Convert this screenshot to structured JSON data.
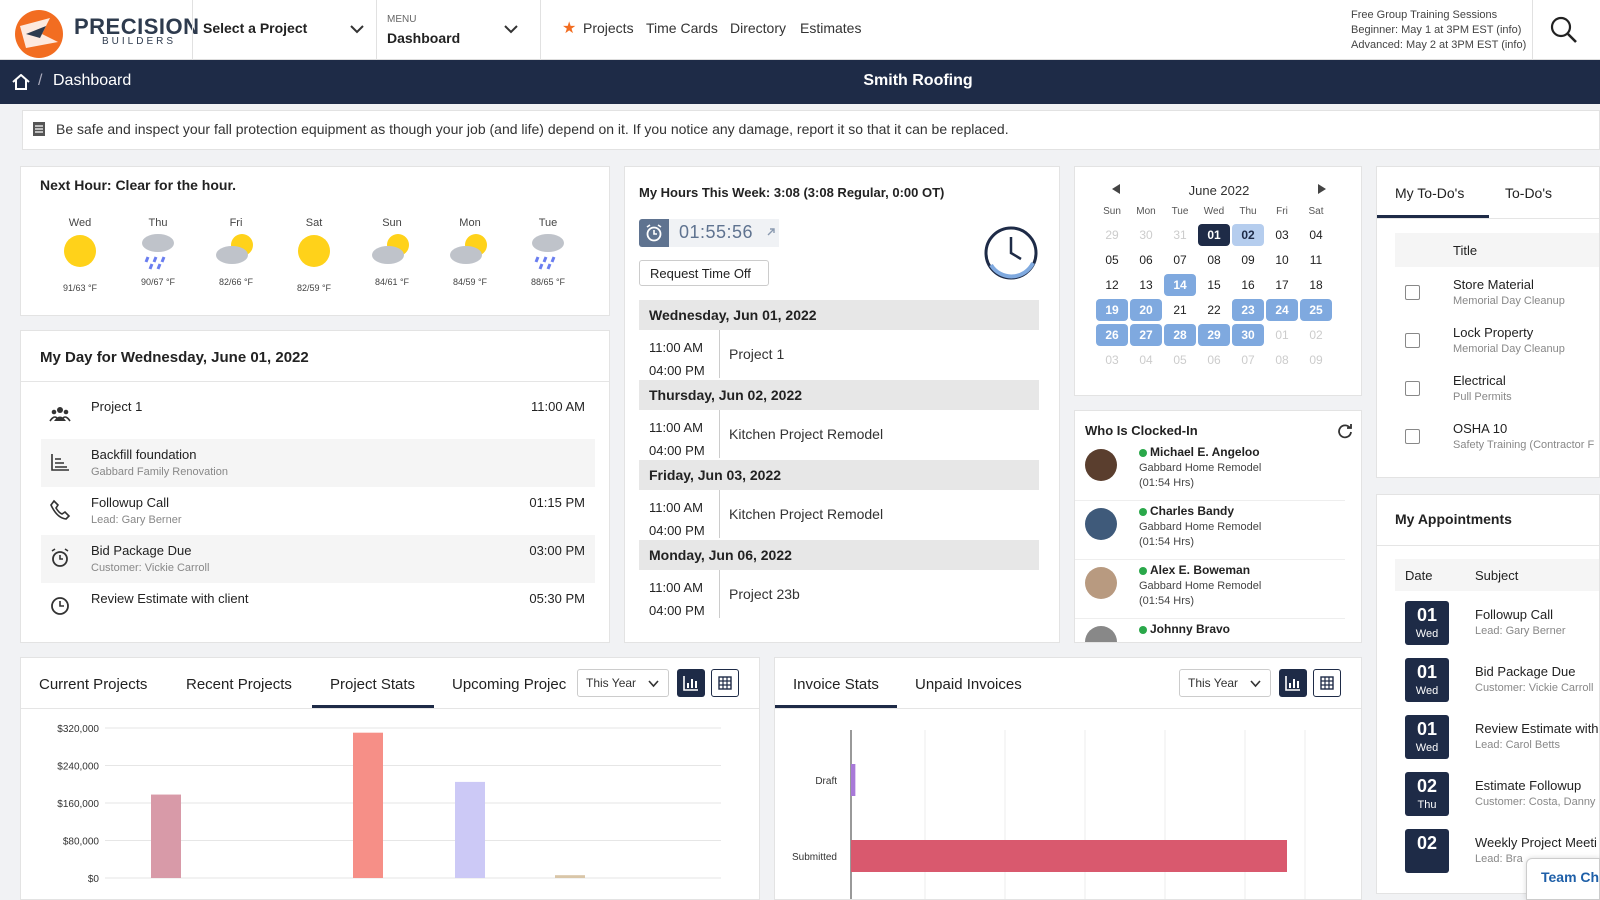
{
  "brand": {
    "name": "PRECISION",
    "sub": "BUILDERS"
  },
  "header": {
    "project_select": "Select a Project",
    "menu_label": "MENU",
    "menu_value": "Dashboard",
    "nav": [
      "Projects",
      "Time Cards",
      "Directory",
      "Estimates"
    ],
    "training": {
      "title": "Free Group Training Sessions",
      "beginner": "Beginner: May 1 at 3PM EST (info)",
      "advanced": "Advanced: May 2 at 3PM EST (info)"
    }
  },
  "breadcrumb": {
    "current": "Dashboard",
    "sep": "/"
  },
  "company": "Smith Roofing",
  "notice": "Be safe and inspect your fall protection equipment as though your job (and life) depend on it. If you notice any damage, report it so that it can be replaced.",
  "weather": {
    "headline": "Next Hour: Clear for the hour.",
    "days": [
      {
        "day": "Wed",
        "temp": "91/63 °F",
        "icon": "sun-icon"
      },
      {
        "day": "Thu",
        "temp": "90/67 °F",
        "icon": "rain-icon"
      },
      {
        "day": "Fri",
        "temp": "82/66 °F",
        "icon": "partly-cloudy-icon"
      },
      {
        "day": "Sat",
        "temp": "82/59 °F",
        "icon": "sun-icon"
      },
      {
        "day": "Sun",
        "temp": "84/61 °F",
        "icon": "partly-cloudy-icon"
      },
      {
        "day": "Mon",
        "temp": "84/59 °F",
        "icon": "partly-cloudy-icon"
      },
      {
        "day": "Tue",
        "temp": "88/65 °F",
        "icon": "rain-icon"
      }
    ]
  },
  "myday": {
    "title": "My Day for Wednesday, June 01, 2022",
    "items": [
      {
        "title": "Project 1",
        "sub": "",
        "time": "11:00 AM",
        "icon": "team-icon"
      },
      {
        "title": "Backfill foundation",
        "sub": "Gabbard Family Renovation",
        "time": "",
        "icon": "task-icon"
      },
      {
        "title": "Followup Call",
        "sub": "Lead: Gary Berner",
        "time": "01:15 PM",
        "icon": "phone-icon"
      },
      {
        "title": "Bid Package Due",
        "sub": "Customer: Vickie Carroll",
        "time": "03:00 PM",
        "icon": "alarm-icon"
      },
      {
        "title": "Review Estimate with client",
        "sub": "",
        "time": "05:30 PM",
        "icon": "clock-icon"
      }
    ]
  },
  "hours": {
    "title": "My Hours This Week: 3:08 (3:08 Regular, 0:00 OT)",
    "timer": "01:55:56",
    "request_btn": "Request Time Off",
    "days": [
      {
        "header": "Wednesday, Jun 01, 2022",
        "start": "11:00 AM",
        "end": "04:00 PM",
        "project": "Project 1"
      },
      {
        "header": "Thursday, Jun 02, 2022",
        "start": "11:00 AM",
        "end": "04:00 PM",
        "project": "Kitchen Project Remodel"
      },
      {
        "header": "Friday, Jun 03, 2022",
        "start": "11:00 AM",
        "end": "04:00 PM",
        "project": "Kitchen Project Remodel"
      },
      {
        "header": "Monday, Jun 06, 2022",
        "start": "11:00 AM",
        "end": "04:00 PM",
        "project": "Project 23b"
      }
    ]
  },
  "calendar": {
    "month": "June 2022",
    "weekdays": [
      "Sun",
      "Mon",
      "Tue",
      "Wed",
      "Thu",
      "Fri",
      "Sat"
    ],
    "weeks": [
      [
        {
          "d": "29",
          "s": "muted"
        },
        {
          "d": "30",
          "s": "muted"
        },
        {
          "d": "31",
          "s": "muted"
        },
        {
          "d": "01",
          "s": "sel"
        },
        {
          "d": "02",
          "s": "today"
        },
        {
          "d": "03",
          "s": ""
        },
        {
          "d": "04",
          "s": ""
        }
      ],
      [
        {
          "d": "05",
          "s": ""
        },
        {
          "d": "06",
          "s": ""
        },
        {
          "d": "07",
          "s": ""
        },
        {
          "d": "08",
          "s": ""
        },
        {
          "d": "09",
          "s": ""
        },
        {
          "d": "10",
          "s": ""
        },
        {
          "d": "11",
          "s": ""
        }
      ],
      [
        {
          "d": "12",
          "s": ""
        },
        {
          "d": "13",
          "s": ""
        },
        {
          "d": "14",
          "s": "hl"
        },
        {
          "d": "15",
          "s": ""
        },
        {
          "d": "16",
          "s": ""
        },
        {
          "d": "17",
          "s": ""
        },
        {
          "d": "18",
          "s": ""
        }
      ],
      [
        {
          "d": "19",
          "s": "hl"
        },
        {
          "d": "20",
          "s": "hl"
        },
        {
          "d": "21",
          "s": ""
        },
        {
          "d": "22",
          "s": ""
        },
        {
          "d": "23",
          "s": "hl"
        },
        {
          "d": "24",
          "s": "hl"
        },
        {
          "d": "25",
          "s": "hl"
        }
      ],
      [
        {
          "d": "26",
          "s": "hl"
        },
        {
          "d": "27",
          "s": "hl"
        },
        {
          "d": "28",
          "s": "hl"
        },
        {
          "d": "29",
          "s": "hl"
        },
        {
          "d": "30",
          "s": "hl"
        },
        {
          "d": "01",
          "s": "muted"
        },
        {
          "d": "02",
          "s": "muted"
        }
      ],
      [
        {
          "d": "03",
          "s": "muted"
        },
        {
          "d": "04",
          "s": "muted"
        },
        {
          "d": "05",
          "s": "muted"
        },
        {
          "d": "06",
          "s": "muted"
        },
        {
          "d": "07",
          "s": "muted"
        },
        {
          "d": "08",
          "s": "muted"
        },
        {
          "d": "09",
          "s": "muted"
        }
      ]
    ]
  },
  "clocked": {
    "title": "Who Is Clocked-In",
    "people": [
      {
        "name": "Michael E. Angeloo",
        "project": "Gabbard Home Remodel",
        "hrs": "(01:54 Hrs)"
      },
      {
        "name": "Charles Bandy",
        "project": "Gabbard Home Remodel",
        "hrs": "(01:54 Hrs)"
      },
      {
        "name": "Alex E. Boweman",
        "project": "Gabbard Home Remodel",
        "hrs": "(01:54 Hrs)"
      },
      {
        "name": "Johnny Bravo",
        "project": "",
        "hrs": ""
      }
    ]
  },
  "todos": {
    "tabs": [
      "My To-Do's",
      "To-Do's"
    ],
    "col_title": "Title",
    "items": [
      {
        "title": "Store Material",
        "sub": "Memorial Day Cleanup"
      },
      {
        "title": "Lock Property",
        "sub": "Memorial Day Cleanup"
      },
      {
        "title": "Electrical",
        "sub": "Pull Permits"
      },
      {
        "title": "OSHA 10",
        "sub": "Safety Training (Contractor F"
      }
    ]
  },
  "appointments": {
    "title": "My Appointments",
    "col_date": "Date",
    "col_subject": "Subject",
    "items": [
      {
        "n": "01",
        "w": "Wed",
        "subject": "Followup Call",
        "sub": "Lead: Gary Berner"
      },
      {
        "n": "01",
        "w": "Wed",
        "subject": "Bid Package Due",
        "sub": "Customer: Vickie Carroll"
      },
      {
        "n": "01",
        "w": "Wed",
        "subject": "Review Estimate with",
        "sub": "Lead: Carol Betts"
      },
      {
        "n": "02",
        "w": "Thu",
        "subject": "Estimate Followup",
        "sub": "Customer: Costa, Danny"
      },
      {
        "n": "02",
        "w": "",
        "subject": "Weekly Project Meeti",
        "sub": "Lead: Bra"
      }
    ],
    "team_chat": "Team Ch"
  },
  "project_panel": {
    "tabs": [
      "Current Projects",
      "Recent Projects",
      "Project Stats",
      "Upcoming Projec"
    ],
    "filter": "This Year"
  },
  "invoice_panel": {
    "tabs": [
      "Invoice Stats",
      "Unpaid Invoices"
    ],
    "filter": "This Year"
  },
  "chart_data": [
    {
      "type": "bar",
      "yticks": [
        "$320,000",
        "$240,000",
        "$160,000",
        "$80,000",
        "$0"
      ],
      "ylim": [
        0,
        320000
      ],
      "values": [
        178000,
        310000,
        205000,
        6000
      ],
      "colors": [
        "#d89aa8",
        "#f68f87",
        "#ccc9f6",
        "#d9c6a8"
      ]
    },
    {
      "type": "bar",
      "orientation": "horizontal",
      "categories": [
        "Draft",
        "Submitted"
      ],
      "values": [
        1,
        100
      ],
      "colors": [
        "#a879d8",
        "#d9596e"
      ]
    }
  ]
}
